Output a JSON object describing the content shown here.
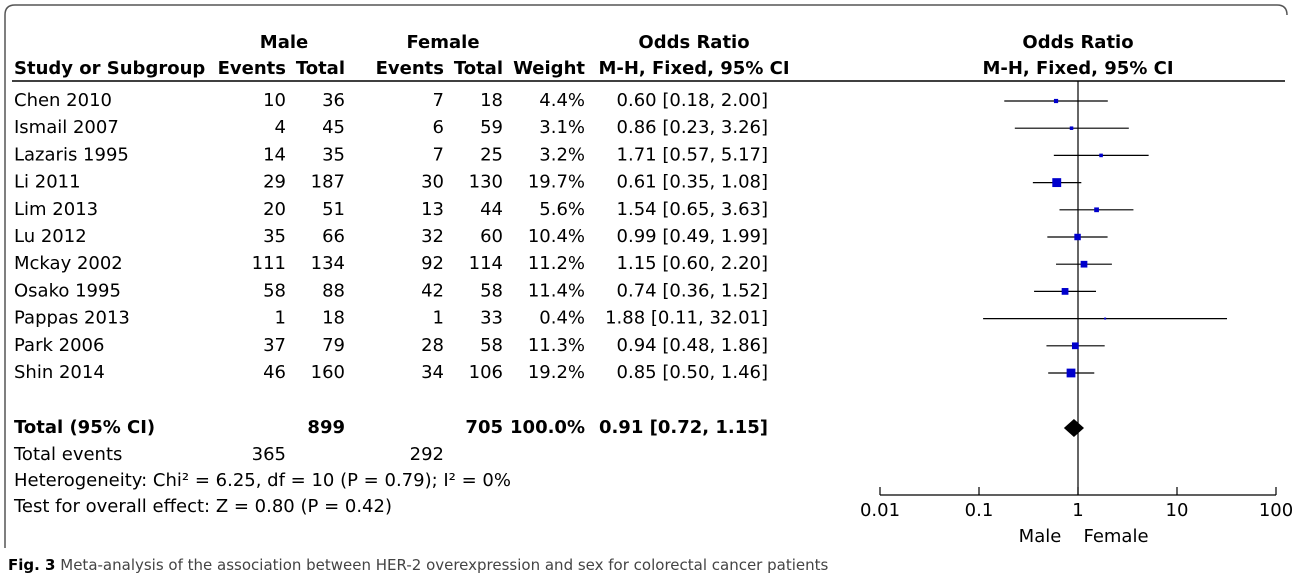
{
  "chart_data": {
    "type": "forest",
    "headers": {
      "male": "Male",
      "female": "Female",
      "odds_ratio": "Odds Ratio",
      "plot_title": "Odds Ratio",
      "study": "Study or Subgroup",
      "male_events": "Events",
      "male_total": "Total",
      "female_events": "Events",
      "female_total": "Total",
      "weight": "Weight",
      "method": "M-H, Fixed, 95% CI",
      "plot_method": "M-H, Fixed, 95% CI"
    },
    "categories": [
      "Chen 2010",
      "Ismail 2007",
      "Lazaris 1995",
      "Li 2011",
      "Lim 2013",
      "Lu 2012",
      "Mckay 2002",
      "Osako 1995",
      "Pappas 2013",
      "Park 2006",
      "Shin 2014"
    ],
    "male_events": [
      10,
      4,
      14,
      29,
      20,
      35,
      111,
      58,
      1,
      37,
      46
    ],
    "male_total": [
      36,
      45,
      35,
      187,
      51,
      66,
      134,
      88,
      18,
      79,
      160
    ],
    "female_events": [
      7,
      6,
      7,
      30,
      13,
      32,
      92,
      42,
      1,
      28,
      34
    ],
    "female_total": [
      18,
      59,
      25,
      130,
      44,
      60,
      114,
      58,
      33,
      58,
      106
    ],
    "weights": [
      4.4,
      3.1,
      3.2,
      19.7,
      5.6,
      10.4,
      11.2,
      11.4,
      0.4,
      11.3,
      19.2
    ],
    "weight_labels": [
      "4.4%",
      "3.1%",
      "3.2%",
      "19.7%",
      "5.6%",
      "10.4%",
      "11.2%",
      "11.4%",
      "0.4%",
      "11.3%",
      "19.2%"
    ],
    "values": [
      0.6,
      0.86,
      1.71,
      0.61,
      1.54,
      0.99,
      1.15,
      0.74,
      1.88,
      0.94,
      0.85
    ],
    "ci_low": [
      0.18,
      0.23,
      0.57,
      0.35,
      0.65,
      0.49,
      0.6,
      0.36,
      0.11,
      0.48,
      0.5
    ],
    "ci_high": [
      2.0,
      3.26,
      5.17,
      1.08,
      3.63,
      1.99,
      2.2,
      1.52,
      32.01,
      1.86,
      1.46
    ],
    "value_labels": [
      "0.60 [0.18, 2.00]",
      "0.86 [0.23, 3.26]",
      "1.71 [0.57, 5.17]",
      "0.61 [0.35, 1.08]",
      "1.54 [0.65, 3.63]",
      "0.99 [0.49, 1.99]",
      "1.15 [0.60, 2.20]",
      "0.74 [0.36, 1.52]",
      "1.88 [0.11, 32.01]",
      "0.94 [0.48, 1.86]",
      "0.85 [0.50, 1.46]"
    ],
    "marker_color": "#0000cc",
    "total": {
      "label": "Total (95% CI)",
      "male_total": 899,
      "female_total": 705,
      "weight": 100.0,
      "weight_label": "100.0%",
      "value": 0.91,
      "ci_low": 0.72,
      "ci_high": 1.15,
      "value_label": "0.91 [0.72, 1.15]"
    },
    "total_events": {
      "label": "Total events",
      "male": 365,
      "female": 292
    },
    "heterogeneity": "Heterogeneity: Chi² = 6.25, df = 10 (P = 0.79); I² = 0%",
    "overall_effect": "Test for overall effect: Z = 0.80 (P = 0.42)",
    "log_x": true,
    "xlim": [
      0.01,
      100
    ],
    "xticks": [
      0.01,
      0.1,
      1,
      10,
      100
    ],
    "favours_left": "Male",
    "favours_right": "Female",
    "caption_label": "Fig. 3",
    "caption": "Meta-analysis of the association between HER-2 overexpression and sex for colorectal cancer patients"
  }
}
